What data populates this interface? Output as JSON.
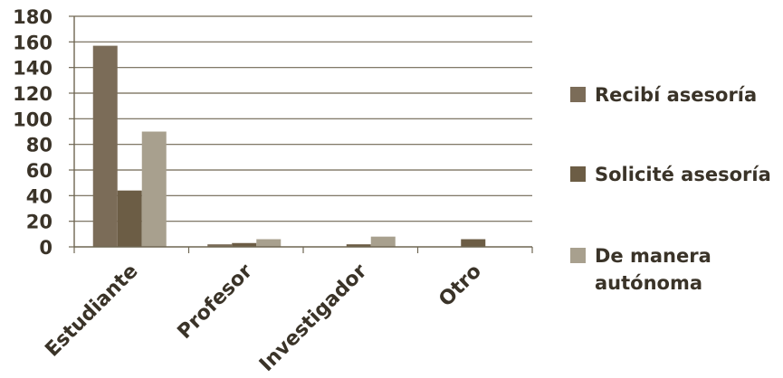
{
  "chart_data": {
    "type": "bar",
    "title": "",
    "xlabel": "",
    "ylabel": "",
    "categories": [
      "Estudiante",
      "Profesor",
      "Investigador",
      "Otro"
    ],
    "series": [
      {
        "name": "Recibí asesoría",
        "values": [
          157,
          2,
          0,
          0
        ],
        "color": "#7b6c58"
      },
      {
        "name": "Solicité asesoría",
        "values": [
          44,
          3,
          2,
          6
        ],
        "color": "#6c5d45"
      },
      {
        "name": "De manera autónoma",
        "values": [
          90,
          6,
          8,
          0
        ],
        "color": "#a8a08e"
      }
    ],
    "ylim": [
      0,
      180
    ],
    "yticks": [
      0,
      20,
      40,
      60,
      80,
      100,
      120,
      140,
      160,
      180
    ],
    "grid": true,
    "legend_position": "right"
  }
}
